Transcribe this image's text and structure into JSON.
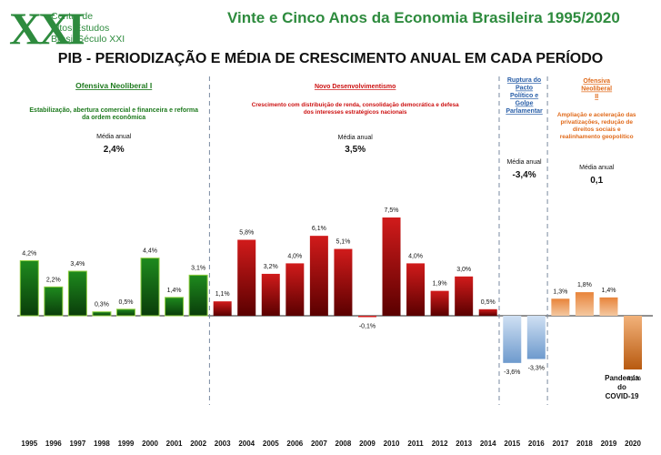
{
  "header": {
    "logo_text_1": "Centro de",
    "logo_text_2": "Altos Estudos",
    "logo_text_3": "Brasil Século XXI",
    "title": "Vinte e Cinco Anos da Economia Brasileira 1995/2020",
    "subtitle": "PIB - PERIODIZAÇÃO E MÉDIA DE CRESCIMENTO ANUAL EM CADA PERÍODO"
  },
  "chart_data": {
    "type": "bar",
    "title": "PIB - PERIODIZAÇÃO E MÉDIA DE CRESCIMENTO ANUAL EM CADA PERÍODO",
    "xlabel": "",
    "ylabel": "",
    "ylim": [
      -4.5,
      8.0
    ],
    "grid": false,
    "categories": [
      "1995",
      "1996",
      "1997",
      "1998",
      "1999",
      "2000",
      "2001",
      "2002",
      "2003",
      "2004",
      "2005",
      "2006",
      "2007",
      "2008",
      "2009",
      "2010",
      "2011",
      "2012",
      "2013",
      "2014",
      "2015",
      "2016",
      "2017",
      "2018",
      "2019",
      "2020"
    ],
    "values": [
      4.2,
      2.2,
      3.4,
      0.3,
      0.5,
      4.4,
      1.4,
      3.1,
      1.1,
      5.8,
      3.2,
      4.0,
      6.1,
      5.1,
      -0.1,
      7.5,
      4.0,
      1.9,
      3.0,
      0.5,
      -3.6,
      -3.3,
      1.3,
      1.8,
      1.4,
      -4.1
    ],
    "value_labels": [
      "4,2%",
      "2,2%",
      "3,4%",
      "0,3%",
      "0,5%",
      "4,4%",
      "1,4%",
      "3,1%",
      "1,1%",
      "5,8%",
      "3,2%",
      "4,0%",
      "6,1%",
      "5,1%",
      "-0,1%",
      "7,5%",
      "4,0%",
      "1,9%",
      "3,0%",
      "0,5%",
      "-3,6%",
      "-3,3%",
      "1,3%",
      "1,8%",
      "1,4%",
      "-4,1%"
    ],
    "periods": [
      {
        "name": "Ofensiva Neoliberal I",
        "start": 0,
        "end": 7,
        "description": "Estabilização, abertura comercial e financeira e reforma da ordem econômica",
        "avg_label": "Média anual",
        "avg_value": "2,4%",
        "color": "#1e8a1e",
        "title_color": "#1e7a1e"
      },
      {
        "name": "Novo Desenvolvimentismo",
        "start": 8,
        "end": 19,
        "description": "Crescimento com distribuição de renda, consolidação democrática e defesa dos interesses estratégicos nacionais",
        "avg_label": "Média anual",
        "avg_value": "3,5%",
        "color": "#d11b1b",
        "title_color": "#cc1111"
      },
      {
        "name": "Ruptura do Pacto Político e Golpe Parlamentar",
        "start": 20,
        "end": 21,
        "description": "",
        "avg_label": "Média anual",
        "avg_value": "-3,4%",
        "color": "#7fa8d8",
        "title_color": "#2a5fa8"
      },
      {
        "name": "Ofensiva Neoliberal II",
        "start": 22,
        "end": 25,
        "description": "Ampliação e aceleração das privatizações, redução de direitos sociais e realinhamento geopolítico",
        "avg_label": "Média anual",
        "avg_value": "0,1",
        "color": "#e8843a",
        "title_color": "#e06a1a"
      }
    ],
    "annotation": "Pandemia do COVID-19"
  }
}
